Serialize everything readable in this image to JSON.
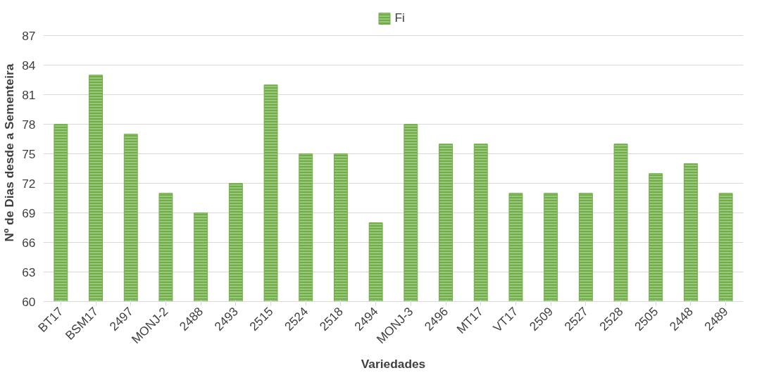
{
  "chart_data": {
    "type": "bar",
    "xlabel": "Variedades",
    "ylabel": "Nº de Dias desde a Sementeira",
    "categories": [
      "BT17",
      "BSM17",
      "2497",
      "MONJ-2",
      "2488",
      "2493",
      "2515",
      "2524",
      "2518",
      "2494",
      "MONJ-3",
      "2496",
      "MT17",
      "VT17",
      "2509",
      "2527",
      "2528",
      "2505",
      "2448",
      "2489"
    ],
    "series": [
      {
        "name": "Fi",
        "color": "#70ad47",
        "values": [
          78,
          83,
          77,
          71,
          69,
          72,
          82,
          75,
          75,
          68,
          78,
          76,
          76,
          71,
          71,
          71,
          76,
          73,
          74,
          71
        ]
      }
    ],
    "ylim": [
      60,
      87
    ],
    "yticks": [
      60,
      63,
      66,
      69,
      72,
      75,
      78,
      81,
      84,
      87
    ],
    "grid": "y",
    "legend": "top"
  }
}
